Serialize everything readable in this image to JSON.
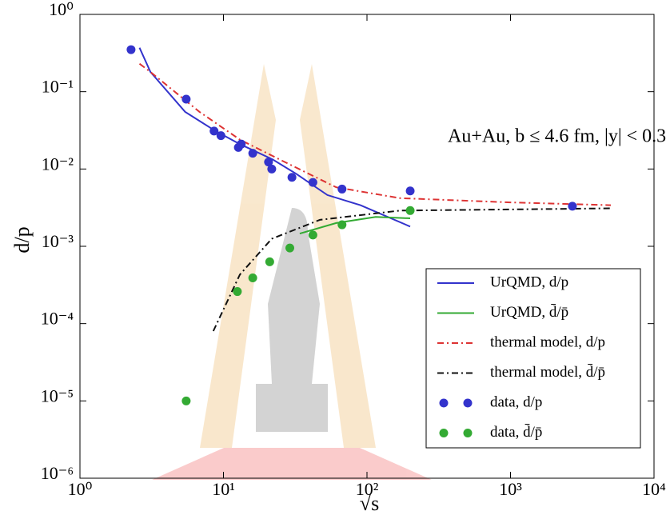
{
  "chart_data": {
    "type": "line",
    "log_x": true,
    "log_y": true,
    "annotation": "Au+Au, b ≤ 4.6 fm, |y| < 0.3",
    "x_label": "√s",
    "y_label": "d/p",
    "xlim": [
      1,
      10000
    ],
    "ylim": [
      1e-06,
      1
    ],
    "xticks": [
      {
        "value": 1,
        "label": "10⁰"
      },
      {
        "value": 10,
        "label": "10¹"
      },
      {
        "value": 100,
        "label": "10²"
      },
      {
        "value": 1000,
        "label": "10³"
      },
      {
        "value": 10000,
        "label": "10⁴"
      }
    ],
    "yticks": [
      {
        "value": 1,
        "label": "10⁰"
      },
      {
        "value": 0.1,
        "label": "10⁻¹"
      },
      {
        "value": 0.01,
        "label": "10⁻²"
      },
      {
        "value": 0.001,
        "label": "10⁻³"
      },
      {
        "value": 0.0001,
        "label": "10⁻⁴"
      },
      {
        "value": 1e-05,
        "label": "10⁻⁵"
      },
      {
        "value": 1e-06,
        "label": "10⁻⁶"
      }
    ],
    "legend": "lower right",
    "series": [
      {
        "name": "UrQMD, d/p",
        "color": "#3333cc",
        "style": "solid",
        "x": [
          2.6,
          3.1,
          5.4,
          8.8,
          13,
          22,
          32,
          53,
          90,
          200
        ],
        "values": [
          0.37,
          0.18,
          0.055,
          0.031,
          0.021,
          0.0133,
          0.0087,
          0.0046,
          0.0034,
          0.0018
        ]
      },
      {
        "name": "UrQMD, d̄/p̄",
        "color": "#33aa33",
        "style": "solid",
        "x": [
          34,
          61,
          115,
          200
        ],
        "values": [
          0.00146,
          0.002,
          0.0024,
          0.0023
        ]
      },
      {
        "name": "thermal model, d/p",
        "color": "#dd3333",
        "style": "dashdot",
        "x": [
          2.6,
          3.1,
          6.8,
          13,
          24.6,
          61,
          170,
          1000,
          5000
        ],
        "values": [
          0.23,
          0.18,
          0.055,
          0.024,
          0.0133,
          0.0058,
          0.0042,
          0.0037,
          0.0034
        ]
      },
      {
        "name": "thermal model, d̄/p̄",
        "color": "#111111",
        "style": "dashdot",
        "x": [
          8.5,
          13,
          21.7,
          47,
          170,
          1000,
          5000
        ],
        "values": [
          8e-05,
          0.00043,
          0.00125,
          0.0022,
          0.0029,
          0.003,
          0.0031
        ]
      },
      {
        "name": "data, d/p",
        "color": "#3333cc",
        "style": "marker",
        "x": [
          2.27,
          5.5,
          8.6,
          9.6,
          12.7,
          13.3,
          16,
          20.6,
          21.7,
          30,
          42,
          67,
          200,
          2700
        ],
        "values": [
          0.35,
          0.08,
          0.031,
          0.027,
          0.019,
          0.021,
          0.016,
          0.0123,
          0.01,
          0.0078,
          0.0067,
          0.0055,
          0.0052,
          0.0033
        ]
      },
      {
        "name": "data, d̄/p̄",
        "color": "#33aa33",
        "style": "marker",
        "x": [
          5.5,
          12.5,
          16,
          21,
          29,
          42,
          67,
          200
        ],
        "values": [
          1e-05,
          0.00026,
          0.00039,
          0.00063,
          0.00095,
          0.0014,
          0.0019,
          0.0029
        ]
      }
    ]
  }
}
